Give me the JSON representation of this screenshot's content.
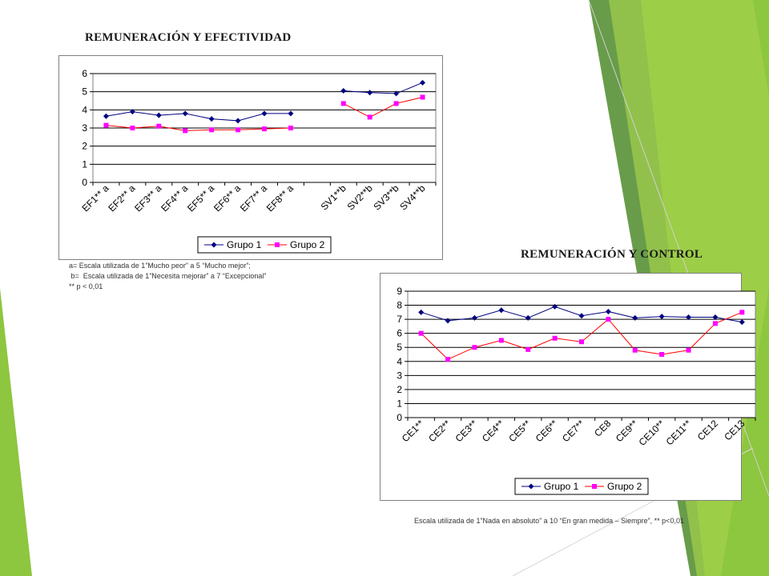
{
  "titles": {
    "left": "REMUNERACIÓN Y EFECTIVIDAD",
    "right": "REMUNERACIÓN Y CONTROL"
  },
  "notes": {
    "left": [
      "a= Escala utilizada de 1”Mucho peor” a 5 “Mucho mejor”;",
      " b=  Escala utilizada de 1”Necesita mejorar” a 7 “Excepcional”",
      "** p < 0,01"
    ],
    "right": "Escala utilizada de 1”Nada en absoluto” a 10 “En gran medida – Siempre”, ** p<0,01"
  },
  "colors": {
    "grupo1": "#000080",
    "grupo2": "#ff00ff",
    "grupo2_line": "#ff0000",
    "accent_green": "#7cc02f"
  },
  "chart_data": [
    {
      "type": "line",
      "title": "REMUNERACIÓN Y EFECTIVIDAD",
      "categories": [
        "EF1** a",
        "EF2** a",
        "EF3** a",
        "EF4** a",
        "EF5** a",
        "EF6** a",
        "EF7** a",
        "EF8** a",
        "",
        "SV1**b",
        "SV2**b",
        "SV3**b",
        "SV4**b"
      ],
      "series": [
        {
          "name": "Grupo 1",
          "values": [
            3.65,
            3.9,
            3.7,
            3.8,
            3.5,
            3.4,
            3.8,
            3.8,
            null,
            5.05,
            4.95,
            4.9,
            5.5
          ]
        },
        {
          "name": "Grupo 2",
          "values": [
            3.15,
            3.0,
            3.1,
            2.85,
            2.9,
            2.9,
            2.95,
            3.0,
            null,
            4.35,
            3.6,
            4.35,
            4.7
          ]
        }
      ],
      "ylim": [
        0,
        6
      ],
      "yticks": [
        "0",
        "1",
        "2",
        "3",
        "4",
        "5",
        "6"
      ],
      "grid": true,
      "legend": "bottom"
    },
    {
      "type": "line",
      "title": "REMUNERACIÓN Y CONTROL",
      "categories": [
        "CE1**",
        "CE2**",
        "CE3**",
        "CE4**",
        "CE5**",
        "CE6**",
        "CE7**",
        "CE8",
        "CE9**",
        "CE10**",
        "CE11**",
        "CE12",
        "CE13"
      ],
      "series": [
        {
          "name": "Grupo 1",
          "values": [
            7.5,
            6.9,
            7.1,
            7.65,
            7.1,
            7.9,
            7.25,
            7.55,
            7.1,
            7.2,
            7.15,
            7.15,
            6.8
          ]
        },
        {
          "name": "Grupo 2",
          "values": [
            6.0,
            4.15,
            5.0,
            5.5,
            4.85,
            5.65,
            5.4,
            7.0,
            4.8,
            4.5,
            4.8,
            6.7,
            7.5
          ]
        }
      ],
      "ylim": [
        0,
        9
      ],
      "yticks": [
        "0",
        "1",
        "2",
        "3",
        "4",
        "5",
        "6",
        "7",
        "8",
        "9"
      ],
      "grid": true,
      "legend": "bottom"
    }
  ]
}
